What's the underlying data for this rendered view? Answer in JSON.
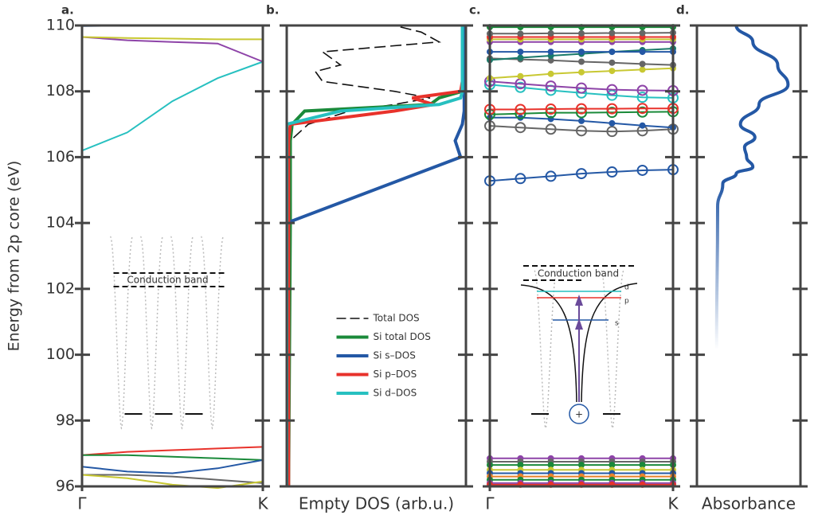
{
  "chart_data": [
    {
      "type": "band",
      "panel_label": "a.",
      "ylabel": "Energy from 2p core (eV)",
      "ylim": [
        96,
        110
      ],
      "yticks": [
        96,
        98,
        100,
        102,
        104,
        106,
        108,
        110
      ],
      "xlim": [
        0,
        1
      ],
      "xticks": [
        {
          "value": 0,
          "label": "Γ"
        },
        {
          "value": 1,
          "label": "K"
        }
      ],
      "x": [
        0,
        0.25,
        0.5,
        0.75,
        1
      ],
      "series": [
        {
          "color": "#27c0c0",
          "values": [
            106.2,
            106.75,
            107.7,
            108.4,
            108.9
          ]
        },
        {
          "color": "#8e44a8",
          "values": [
            109.65,
            109.55,
            109.5,
            109.45,
            108.9
          ]
        },
        {
          "color": "#c8c832",
          "values": [
            109.65,
            109.62,
            109.6,
            109.58,
            109.58
          ]
        },
        {
          "color": "#2458a5",
          "values": [
            109.98,
            110.0,
            null,
            null,
            null
          ]
        },
        {
          "color": "#e8322b",
          "values": [
            96.95,
            97.05,
            97.1,
            97.15,
            97.2
          ]
        },
        {
          "color": "#1a8a3a",
          "values": [
            96.95,
            96.95,
            96.9,
            96.85,
            96.8
          ]
        },
        {
          "color": "#2458a5",
          "values": [
            96.6,
            96.45,
            96.4,
            96.55,
            96.8
          ]
        },
        {
          "color": "#666666",
          "values": [
            96.35,
            96.35,
            96.3,
            96.2,
            96.1
          ]
        },
        {
          "color": "#c8c832",
          "values": [
            96.35,
            96.25,
            96.05,
            95.95,
            96.15
          ]
        }
      ],
      "inset_label": "Conduction band"
    },
    {
      "type": "dos",
      "panel_label": "b.",
      "xlabel": "Empty DOS (arb.u.)",
      "xlim": [
        0,
        1
      ],
      "legend": "center",
      "y": [
        96,
        104,
        106,
        106.5,
        107,
        107.4,
        107.6,
        107.8,
        108,
        108.3,
        108.6,
        108.8,
        109.2,
        109.5,
        109.8,
        110
      ],
      "series": [
        {
          "name": "Total DOS",
          "color": "#111111",
          "style": "dashed",
          "values": [
            0,
            0,
            0,
            0.02,
            0.12,
            0.35,
            0.6,
            0.8,
            0.6,
            0.2,
            0.16,
            0.3,
            0.2,
            0.85,
            0.75,
            0.6
          ]
        },
        {
          "name": "Si total DOS",
          "color": "#1a8a3a",
          "values": [
            0.01,
            0.02,
            0.02,
            0.02,
            0.03,
            0.1,
            0.8,
            0.85,
            0.98,
            0.98,
            0.98,
            0.98,
            0.98,
            0.98,
            0.98,
            0.98
          ]
        },
        {
          "name": "Si s–DOS",
          "color": "#2458a5",
          "values": [
            0,
            0,
            0.97,
            0.94,
            0.98,
            0.99,
            0.99,
            0.99,
            0.99,
            0.99,
            0.99,
            0.99,
            0.99,
            0.99,
            0.99,
            0.99
          ]
        },
        {
          "name": "Si p–DOS",
          "color": "#e8322b",
          "values": [
            0.01,
            0.01,
            0.01,
            0.01,
            0.02,
            0.6,
            0.82,
            0.7,
            0.97,
            0.98,
            0.98,
            0.98,
            0.98,
            0.98,
            0.98,
            0.98
          ]
        },
        {
          "name": "Si d–DOS",
          "color": "#27c0c0",
          "values": [
            0,
            0,
            0,
            0,
            0,
            0.3,
            0.85,
            0.97,
            0.98,
            0.98,
            0.98,
            0.98,
            0.98,
            0.98,
            0.98,
            0.98
          ]
        }
      ]
    },
    {
      "type": "band",
      "panel_label": "c.",
      "xlim": [
        0,
        1
      ],
      "xticks": [
        {
          "value": 0,
          "label": "Γ"
        },
        {
          "value": 1,
          "label": "K"
        }
      ],
      "x": [
        0,
        0.167,
        0.333,
        0.5,
        0.667,
        0.833,
        1
      ],
      "series": [
        {
          "color": "#2458a5",
          "marker": "open",
          "values": [
            105.28,
            105.35,
            105.42,
            105.5,
            105.55,
            105.6,
            105.62
          ]
        },
        {
          "color": "#666666",
          "marker": "open",
          "values": [
            106.95,
            106.9,
            106.85,
            106.8,
            106.78,
            106.8,
            106.85
          ]
        },
        {
          "color": "#2458a5",
          "marker": "dot",
          "values": [
            107.2,
            107.2,
            107.16,
            107.1,
            107.03,
            106.96,
            106.9
          ]
        },
        {
          "color": "#1a8a3a",
          "marker": "open",
          "values": [
            107.3,
            107.32,
            107.35,
            107.35,
            107.36,
            107.37,
            107.38
          ]
        },
        {
          "color": "#e8322b",
          "marker": "open",
          "values": [
            107.45,
            107.45,
            107.46,
            107.47,
            107.47,
            107.48,
            107.48
          ]
        },
        {
          "color": "#27c0c0",
          "marker": "open",
          "values": [
            108.2,
            108.12,
            108.03,
            107.95,
            107.88,
            107.82,
            107.8
          ]
        },
        {
          "color": "#8e44a8",
          "marker": "open",
          "values": [
            108.3,
            108.23,
            108.16,
            108.1,
            108.05,
            108.03,
            108.02
          ]
        },
        {
          "color": "#c8c832",
          "marker": "dot",
          "values": [
            108.4,
            108.46,
            108.53,
            108.58,
            108.62,
            108.66,
            108.7
          ]
        },
        {
          "color": "#666666",
          "marker": "dot",
          "values": [
            109.0,
            108.97,
            108.94,
            108.9,
            108.87,
            108.83,
            108.8
          ]
        },
        {
          "color": "#1a7a6a",
          "marker": "dot",
          "values": [
            108.95,
            109.02,
            109.08,
            109.14,
            109.2,
            109.25,
            109.3
          ]
        },
        {
          "color": "#2458a5",
          "marker": "dot",
          "values": [
            109.2,
            109.2,
            109.2,
            109.2,
            109.2,
            109.2,
            109.2
          ]
        },
        {
          "color": "#8e44a8",
          "marker": "dot",
          "values": [
            109.5,
            109.5,
            109.5,
            109.5,
            109.5,
            109.5,
            109.5
          ]
        },
        {
          "color": "#c8c832",
          "marker": "dot",
          "values": [
            109.58,
            109.58,
            109.58,
            109.58,
            109.58,
            109.58,
            109.58
          ]
        },
        {
          "color": "#e8322b",
          "marker": "dot",
          "values": [
            109.65,
            109.65,
            109.65,
            109.65,
            109.65,
            109.65,
            109.65
          ]
        },
        {
          "color": "#666666",
          "marker": "dot",
          "values": [
            109.75,
            109.75,
            109.76,
            109.76,
            109.77,
            109.77,
            109.78
          ]
        },
        {
          "color": "#1a8a3a",
          "marker": "dot",
          "values": [
            109.95,
            109.95,
            109.95,
            109.95,
            109.95,
            109.95,
            109.95
          ]
        },
        {
          "color": "#8e44a8",
          "marker": "dot",
          "values": [
            96.85,
            96.85,
            96.85,
            96.85,
            96.85,
            96.85,
            96.85
          ]
        },
        {
          "color": "#666666",
          "marker": "dot",
          "values": [
            96.75,
            96.75,
            96.75,
            96.75,
            96.75,
            96.75,
            96.75
          ]
        },
        {
          "color": "#1a8a3a",
          "marker": "dot",
          "values": [
            96.65,
            96.65,
            96.65,
            96.65,
            96.65,
            96.65,
            96.65
          ]
        },
        {
          "color": "#c8c832",
          "marker": "dot",
          "values": [
            96.5,
            96.5,
            96.5,
            96.5,
            96.5,
            96.5,
            96.5
          ]
        },
        {
          "color": "#2458a5",
          "marker": "dot",
          "values": [
            96.4,
            96.4,
            96.4,
            96.4,
            96.4,
            96.4,
            96.4
          ]
        },
        {
          "color": "#e8832b",
          "marker": "dot",
          "values": [
            96.3,
            96.3,
            96.3,
            96.3,
            96.3,
            96.3,
            96.3
          ]
        },
        {
          "color": "#1a8a3a",
          "marker": "dot",
          "values": [
            96.2,
            96.2,
            96.2,
            96.2,
            96.2,
            96.2,
            96.2
          ]
        },
        {
          "color": "#8e44a8",
          "marker": "dot",
          "values": [
            96.1,
            96.1,
            96.1,
            96.1,
            96.1,
            96.1,
            96.1
          ]
        },
        {
          "color": "#e8322b",
          "marker": "dot",
          "values": [
            96.05,
            96.05,
            96.05,
            96.05,
            96.05,
            96.05,
            96.05
          ]
        }
      ],
      "inset_label": "Conduction band",
      "inset_levels": [
        "d",
        "p",
        "s"
      ],
      "inset_charge": "+"
    },
    {
      "type": "absorbance",
      "panel_label": "d.",
      "xlabel": "Absorbance",
      "xlim": [
        0,
        1
      ],
      "color": "#2458a5",
      "y": [
        100.2,
        104.5,
        105.2,
        105.5,
        105.7,
        106.0,
        106.3,
        106.6,
        107.0,
        107.6,
        108.2,
        108.8,
        109.5,
        110
      ],
      "values": [
        0.19,
        0.2,
        0.25,
        0.38,
        0.54,
        0.48,
        0.46,
        0.56,
        0.42,
        0.6,
        0.88,
        0.78,
        0.54,
        0.38
      ]
    }
  ]
}
